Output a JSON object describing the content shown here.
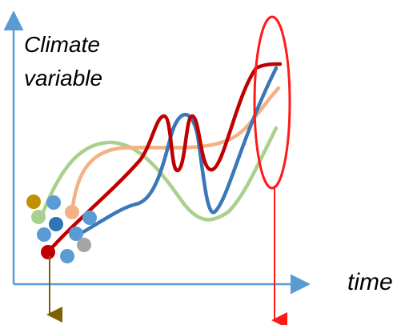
{
  "labels": {
    "y_axis_line1": "Climate",
    "y_axis_line2": "variable",
    "x_axis": "time"
  },
  "colors": {
    "axis": "#5b9bd5",
    "curve_blue": "#3a78b8",
    "curve_green": "#a9d08e",
    "curve_orange": "#f4b183",
    "curve_red": "#c00000",
    "ellipse": "#ff1a1a",
    "arrow_left": "#7f6000",
    "arrow_right": "#ff1a1a"
  },
  "curves": [
    "blue",
    "green",
    "orange",
    "red"
  ],
  "initial_condition_dots": [
    "gold",
    "blue",
    "green",
    "darkblue",
    "orange",
    "blue",
    "blue",
    "blue",
    "grey",
    "blue",
    "darkred"
  ]
}
